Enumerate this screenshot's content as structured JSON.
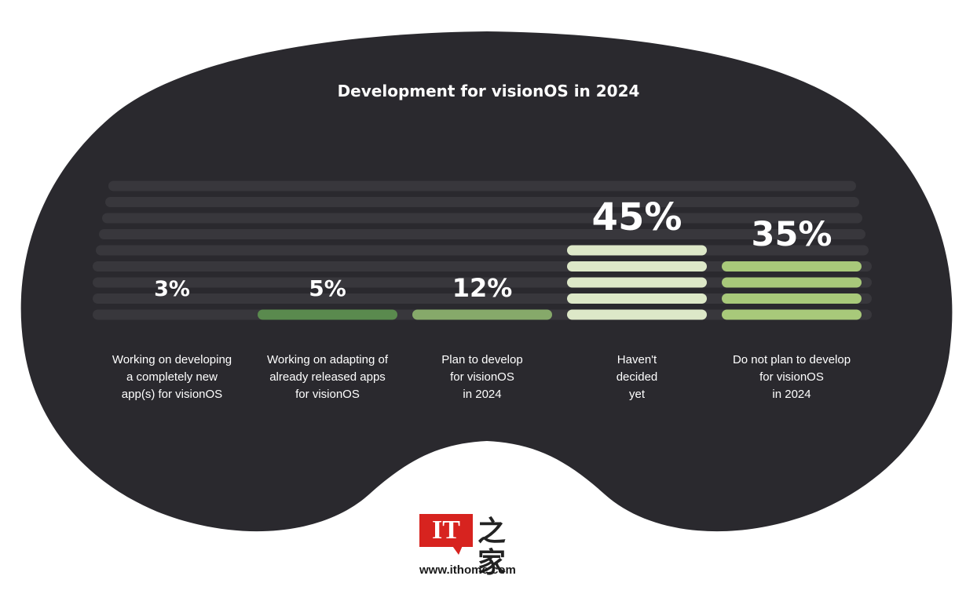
{
  "chart_data": {
    "type": "bar",
    "title": "Development for visionOS in 2024",
    "categories": [
      "Working on developing a completely new app(s) for visionOS",
      "Working on adapting of already released apps for visionOS",
      "Plan to develop for visionOS in 2024",
      "Haven't decided yet",
      "Do not plan to develop for visionOS in 2024"
    ],
    "category_lines": [
      [
        "Working on developing",
        "a completely new",
        "app(s) for visionOS"
      ],
      [
        "Working on adapting of",
        "already released apps",
        "for visionOS"
      ],
      [
        "Plan to develop",
        "for visionOS",
        "in 2024"
      ],
      [
        "Haven't",
        "decided",
        "yet"
      ],
      [
        "Do not plan to develop",
        "for visionOS",
        "in 2024"
      ]
    ],
    "values": [
      3,
      5,
      12,
      45,
      35
    ],
    "value_labels": [
      "3%",
      "5%",
      "12%",
      "45%",
      "35%"
    ],
    "bar_colors": [
      "#3e3e44",
      "#5a8a4e",
      "#86a96a",
      "#dde8c8",
      "#a8c97a"
    ],
    "ylim": [
      0,
      45
    ],
    "colors": {
      "background": "#ffffff",
      "headset": "#2a292e",
      "empty_track": "#38373c"
    }
  },
  "branding": {
    "logo_mark": "IT",
    "logo_chars": "之家",
    "website": "www.ithome.com"
  }
}
